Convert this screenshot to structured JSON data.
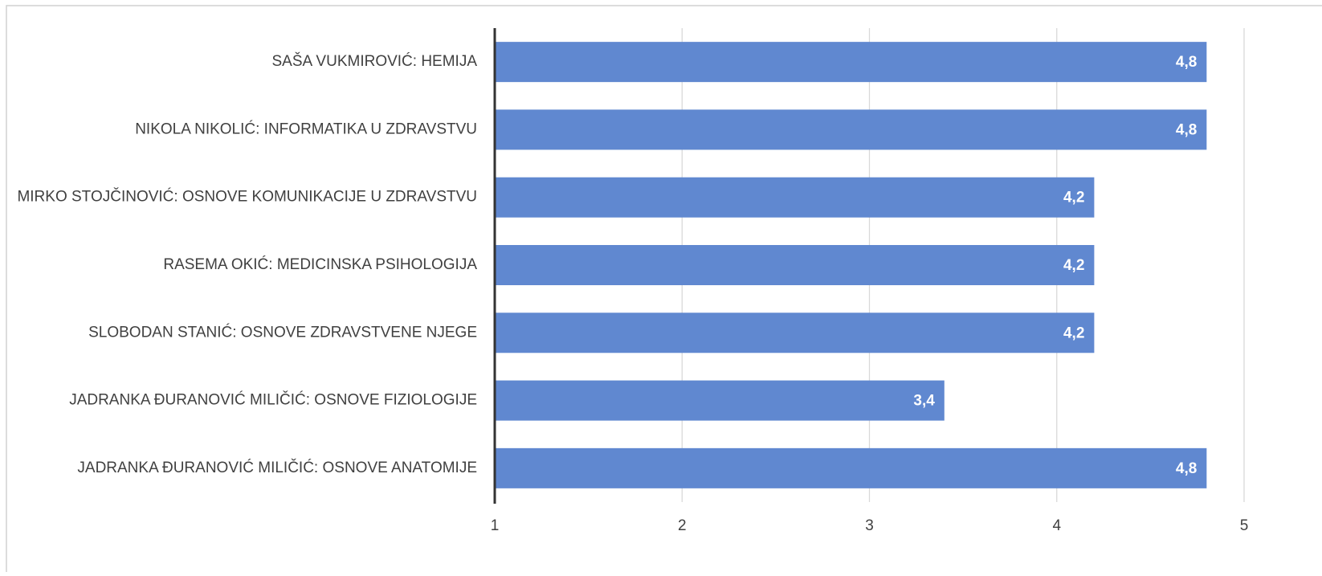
{
  "chart_data": {
    "type": "bar",
    "categories": [
      "SAŠA VUKMIROVIĆ: HEMIJA",
      "NIKOLA NIKOLIĆ: INFORMATIKA U ZDRAVSTVU",
      "MIRKO STOJČINOVIĆ: OSNOVE KOMUNIKACIJE U ZDRAVSTVU",
      "RASEMA OKIĆ: MEDICINSKA PSIHOLOGIJA",
      "SLOBODAN STANIĆ: OSNOVE ZDRAVSTVENE NJEGE",
      "JADRANKA ĐURANOVIĆ MILIČIĆ: OSNOVE FIZIOLOGIJE",
      "JADRANKA ĐURANOVIĆ MILIČIĆ: OSNOVE ANATOMIJE"
    ],
    "values": [
      4.8,
      4.8,
      4.2,
      4.2,
      4.2,
      3.4,
      4.8
    ],
    "value_labels": [
      "4,8",
      "4,8",
      "4,2",
      "4,2",
      "4,2",
      "3,4",
      "4,8"
    ],
    "color": "#6088d0",
    "xlim": [
      1,
      5
    ],
    "xticks": [
      1,
      2,
      3,
      4,
      5
    ],
    "grid": true
  }
}
